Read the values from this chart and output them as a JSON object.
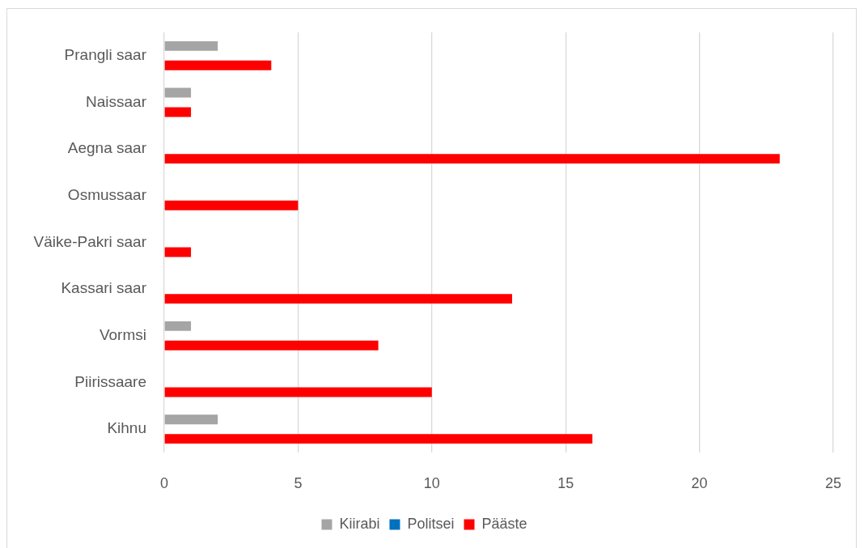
{
  "chart_data": {
    "type": "bar",
    "orientation": "horizontal",
    "categories": [
      "Prangli saar",
      "Naissaar",
      "Aegna saar",
      "Osmussaar",
      "Väike-Pakri saar",
      "Kassari saar",
      "Vormsi",
      "Piirissaare",
      "Kihnu"
    ],
    "series": [
      {
        "name": "Kiirabi",
        "color": "#a5a5a5",
        "values": [
          2,
          1,
          0,
          0,
          0,
          0,
          1,
          0,
          2
        ]
      },
      {
        "name": "Politsei",
        "color": "#0070c0",
        "values": [
          0,
          0,
          0,
          0,
          0,
          0,
          0,
          0,
          0
        ]
      },
      {
        "name": "Pääste",
        "color": "#ff0000",
        "values": [
          4,
          1,
          23,
          5,
          1,
          13,
          8,
          10,
          16
        ]
      }
    ],
    "xlim": [
      0,
      25
    ],
    "xticks": [
      0,
      5,
      10,
      15,
      20,
      25
    ],
    "grid": "x",
    "legend": "bottom"
  }
}
